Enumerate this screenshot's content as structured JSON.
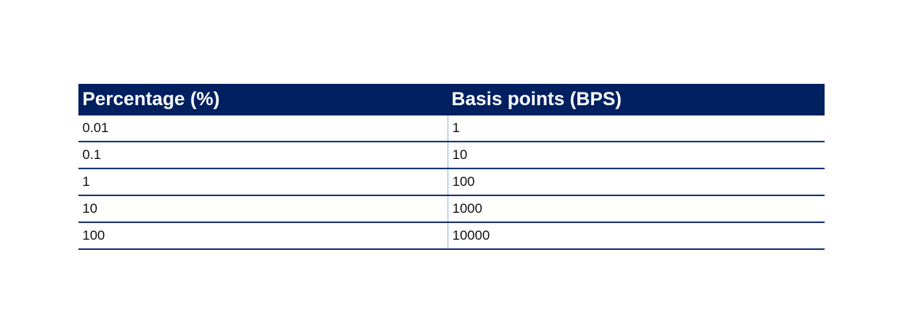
{
  "table": {
    "headers": [
      "Percentage (%)",
      "Basis points (BPS)"
    ],
    "rows": [
      [
        "0.01",
        "1"
      ],
      [
        "0.1",
        "10"
      ],
      [
        "1",
        "100"
      ],
      [
        "10",
        "1000"
      ],
      [
        "100",
        "10000"
      ]
    ]
  },
  "colors": {
    "header_bg": "#002060",
    "row_border": "#1f3a7a"
  }
}
